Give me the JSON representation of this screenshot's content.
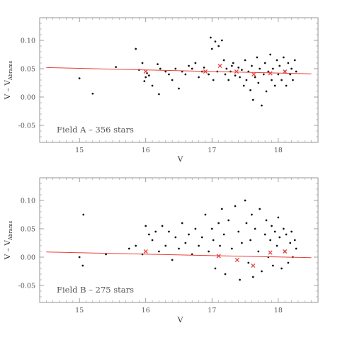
{
  "chart_data": [
    {
      "type": "scatter",
      "annotation": "Field A – 356 stars",
      "xlabel": "V",
      "ylabel": {
        "main": "V – V",
        "sub": "Abrams"
      },
      "xlim": [
        14.4,
        18.6
      ],
      "ylim": [
        -0.08,
        0.14
      ],
      "x_ticks": [
        "15",
        "16",
        "17",
        "18"
      ],
      "y_ticks": [
        "-0.05",
        "0.00",
        "0.05",
        "0.10"
      ],
      "grid": false,
      "fit_line": {
        "x": [
          14.5,
          18.5
        ],
        "y": [
          0.052,
          0.041
        ],
        "color": "#e8403a"
      },
      "binned_means": {
        "color": "#e8403a",
        "points": [
          [
            16.0,
            0.045
          ],
          [
            16.9,
            0.045
          ],
          [
            17.12,
            0.055
          ],
          [
            17.37,
            0.045
          ],
          [
            17.63,
            0.04
          ],
          [
            17.88,
            0.042
          ],
          [
            18.1,
            0.045
          ]
        ]
      },
      "series": [
        {
          "color": "#111111",
          "points": [
            [
              15.0,
              0.033
            ],
            [
              15.2,
              0.006
            ],
            [
              15.55,
              0.053
            ],
            [
              15.85,
              0.085
            ],
            [
              15.9,
              0.048
            ],
            [
              15.95,
              0.06
            ],
            [
              15.98,
              0.028
            ],
            [
              16.0,
              0.035
            ],
            [
              16.02,
              0.042
            ],
            [
              16.05,
              0.038
            ],
            [
              16.1,
              0.02
            ],
            [
              16.18,
              0.058
            ],
            [
              16.2,
              0.005
            ],
            [
              16.22,
              0.05
            ],
            [
              16.3,
              0.045
            ],
            [
              16.35,
              0.04
            ],
            [
              16.4,
              0.03
            ],
            [
              16.45,
              0.05
            ],
            [
              16.5,
              0.015
            ],
            [
              16.55,
              0.045
            ],
            [
              16.6,
              0.04
            ],
            [
              16.65,
              0.055
            ],
            [
              16.7,
              0.05
            ],
            [
              16.75,
              0.06
            ],
            [
              16.8,
              0.035
            ],
            [
              16.85,
              0.045
            ],
            [
              16.88,
              0.052
            ],
            [
              16.95,
              0.04
            ],
            [
              16.98,
              0.105
            ],
            [
              17.0,
              0.085
            ],
            [
              17.02,
              0.03
            ],
            [
              17.05,
              0.098
            ],
            [
              17.08,
              0.045
            ],
            [
              17.1,
              0.09
            ],
            [
              17.15,
              0.1
            ],
            [
              17.18,
              0.065
            ],
            [
              17.2,
              0.04
            ],
            [
              17.22,
              0.05
            ],
            [
              17.25,
              0.03
            ],
            [
              17.28,
              0.045
            ],
            [
              17.3,
              0.055
            ],
            [
              17.32,
              0.06
            ],
            [
              17.35,
              0.038
            ],
            [
              17.4,
              0.052
            ],
            [
              17.42,
              0.035
            ],
            [
              17.45,
              0.048
            ],
            [
              17.48,
              0.02
            ],
            [
              17.5,
              0.065
            ],
            [
              17.52,
              0.03
            ],
            [
              17.55,
              0.045
            ],
            [
              17.58,
              0.012
            ],
            [
              17.6,
              0.055
            ],
            [
              17.62,
              -0.005
            ],
            [
              17.65,
              0.035
            ],
            [
              17.68,
              0.07
            ],
            [
              17.7,
              0.025
            ],
            [
              17.72,
              0.05
            ],
            [
              17.75,
              -0.015
            ],
            [
              17.78,
              0.04
            ],
            [
              17.8,
              0.06
            ],
            [
              17.82,
              0.01
            ],
            [
              17.85,
              0.045
            ],
            [
              17.88,
              0.075
            ],
            [
              17.9,
              0.03
            ],
            [
              17.92,
              0.05
            ],
            [
              17.95,
              0.02
            ],
            [
              17.98,
              0.065
            ],
            [
              18.0,
              0.04
            ],
            [
              18.02,
              0.055
            ],
            [
              18.05,
              0.03
            ],
            [
              18.08,
              0.07
            ],
            [
              18.1,
              0.045
            ],
            [
              18.12,
              0.02
            ],
            [
              18.15,
              0.06
            ],
            [
              18.18,
              0.04
            ],
            [
              18.2,
              0.05
            ],
            [
              18.22,
              0.03
            ],
            [
              18.25,
              0.065
            ],
            [
              18.27,
              0.045
            ]
          ]
        }
      ]
    },
    {
      "type": "scatter",
      "annotation": "Field B – 275 stars",
      "xlabel": "V",
      "ylabel": {
        "main": "V – V",
        "sub": "Abrams"
      },
      "xlim": [
        14.4,
        18.6
      ],
      "ylim": [
        -0.08,
        0.14
      ],
      "x_ticks": [
        "15",
        "16",
        "17",
        "18"
      ],
      "y_ticks": [
        "-0.05",
        "0.00",
        "0.05",
        "0.10"
      ],
      "grid": false,
      "fit_line": {
        "x": [
          14.5,
          18.5
        ],
        "y": [
          0.009,
          -0.001
        ],
        "color": "#e8403a"
      },
      "binned_means": {
        "color": "#e8403a",
        "points": [
          [
            16.0,
            0.01
          ],
          [
            17.1,
            0.002
          ],
          [
            17.38,
            -0.005
          ],
          [
            17.62,
            -0.015
          ],
          [
            17.88,
            0.008
          ],
          [
            18.1,
            0.01
          ]
        ]
      },
      "series": [
        {
          "color": "#111111",
          "points": [
            [
              15.0,
              0.0
            ],
            [
              15.05,
              -0.015
            ],
            [
              15.06,
              0.075
            ],
            [
              15.4,
              0.005
            ],
            [
              15.75,
              0.015
            ],
            [
              15.85,
              0.02
            ],
            [
              15.95,
              0.005
            ],
            [
              16.0,
              0.055
            ],
            [
              16.05,
              0.04
            ],
            [
              16.1,
              0.03
            ],
            [
              16.15,
              0.045
            ],
            [
              16.2,
              0.01
            ],
            [
              16.25,
              0.055
            ],
            [
              16.3,
              0.02
            ],
            [
              16.35,
              0.045
            ],
            [
              16.4,
              -0.005
            ],
            [
              16.45,
              0.035
            ],
            [
              16.5,
              0.015
            ],
            [
              16.55,
              0.06
            ],
            [
              16.6,
              0.025
            ],
            [
              16.65,
              0.04
            ],
            [
              16.7,
              0.005
            ],
            [
              16.75,
              0.05
            ],
            [
              16.8,
              0.02
            ],
            [
              16.85,
              0.035
            ],
            [
              16.9,
              0.075
            ],
            [
              16.95,
              0.01
            ],
            [
              17.0,
              0.05
            ],
            [
              17.02,
              0.03
            ],
            [
              17.05,
              -0.02
            ],
            [
              17.1,
              0.06
            ],
            [
              17.12,
              0.02
            ],
            [
              17.15,
              0.085
            ],
            [
              17.18,
              0.04
            ],
            [
              17.2,
              -0.03
            ],
            [
              17.25,
              0.065
            ],
            [
              17.3,
              0.015
            ],
            [
              17.35,
              0.09
            ],
            [
              17.4,
              0.045
            ],
            [
              17.42,
              -0.04
            ],
            [
              17.45,
              0.025
            ],
            [
              17.5,
              0.1
            ],
            [
              17.52,
              0.06
            ],
            [
              17.55,
              -0.01
            ],
            [
              17.58,
              0.03
            ],
            [
              17.6,
              0.075
            ],
            [
              17.62,
              -0.035
            ],
            [
              17.65,
              0.05
            ],
            [
              17.7,
              0.01
            ],
            [
              17.72,
              0.085
            ],
            [
              17.75,
              -0.025
            ],
            [
              17.8,
              0.04
            ],
            [
              17.82,
              0.065
            ],
            [
              17.85,
              0.0
            ],
            [
              17.88,
              0.03
            ],
            [
              17.9,
              0.055
            ],
            [
              17.92,
              -0.015
            ],
            [
              17.95,
              0.045
            ],
            [
              17.98,
              0.02
            ],
            [
              18.0,
              0.07
            ],
            [
              18.02,
              0.035
            ],
            [
              18.05,
              -0.02
            ],
            [
              18.08,
              0.05
            ],
            [
              18.1,
              0.01
            ],
            [
              18.12,
              0.04
            ],
            [
              18.15,
              -0.01
            ],
            [
              18.18,
              0.025
            ],
            [
              18.2,
              0.045
            ],
            [
              18.22,
              0.0
            ],
            [
              18.25,
              0.03
            ],
            [
              18.27,
              0.015
            ]
          ]
        }
      ]
    }
  ]
}
